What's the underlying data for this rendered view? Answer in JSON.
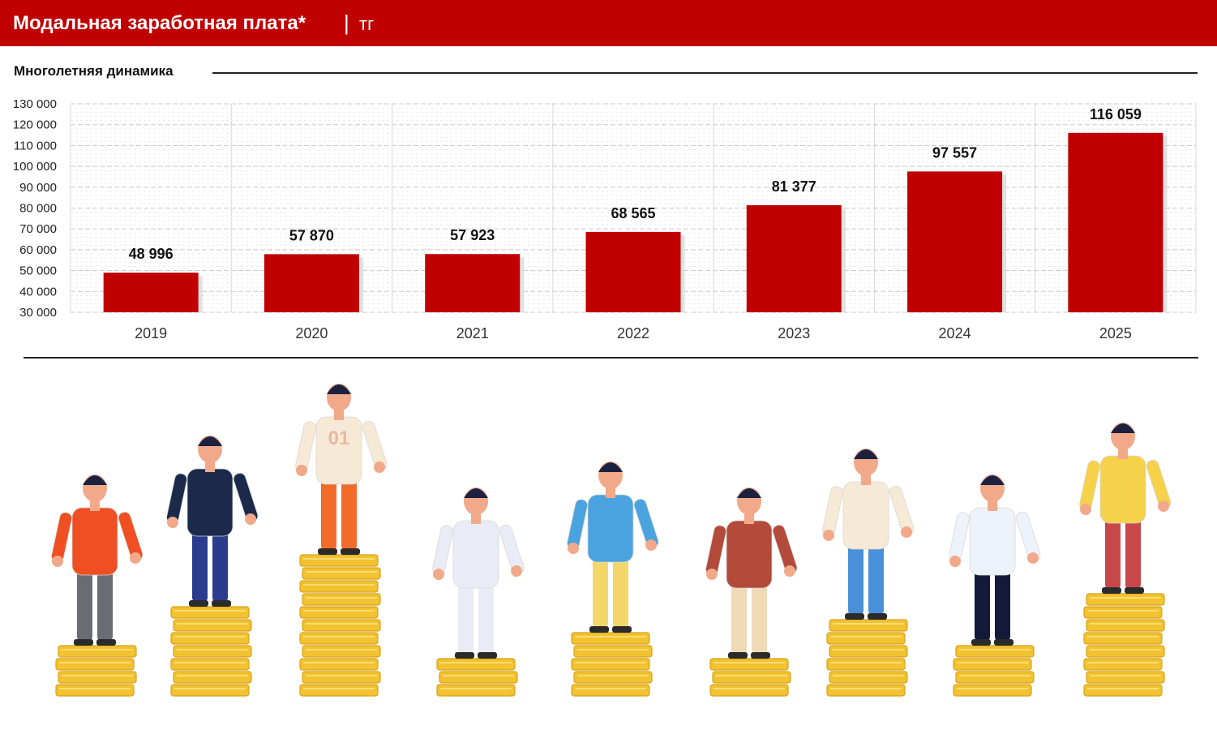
{
  "header": {
    "title": "Модальная заработная плата*",
    "separator": "|",
    "unit": "тг"
  },
  "section": {
    "title": "Многолетняя динамика"
  },
  "colors": {
    "brand": "#c00000",
    "bar": "#c00000",
    "coin": "#f2c230"
  },
  "chart_data": {
    "type": "bar",
    "title": "Многолетняя динамика",
    "categories": [
      "2019",
      "2020",
      "2021",
      "2022",
      "2023",
      "2024",
      "2025"
    ],
    "values": [
      48996,
      57870,
      57923,
      68565,
      81377,
      97557,
      116059
    ],
    "data_labels": [
      "48 996",
      "57 870",
      "57 923",
      "68 565",
      "81 377",
      "97 557",
      "116 059"
    ],
    "y_ticks": [
      "30 000",
      "40 000",
      "50 000",
      "60 000",
      "70 000",
      "80 000",
      "90 000",
      "100 000",
      "110 000",
      "120 000",
      "130 000"
    ],
    "ylim": [
      30000,
      130000
    ],
    "grid": true,
    "legend": "none"
  },
  "illustration": {
    "figures": [
      {
        "name": "courier",
        "coin_stacks": 4,
        "shirt": "#f04e23",
        "pants": "#6b6b73"
      },
      {
        "name": "office-worker",
        "coin_stacks": 7,
        "shirt": "#1b2a4a",
        "pants": "#2b3c8f"
      },
      {
        "name": "football-player",
        "coin_stacks": 11,
        "shirt": "#f6e9d6",
        "pants": "#f26b2a",
        "jersey_number": "01"
      },
      {
        "name": "cleaner",
        "coin_stacks": 3,
        "shirt": "#e9ecf6",
        "pants": "#e9ecf6"
      },
      {
        "name": "builder",
        "coin_stacks": 5,
        "shirt": "#4aa3df",
        "pants": "#f4d76a"
      },
      {
        "name": "gardener",
        "coin_stacks": 3,
        "shirt": "#b34a3a",
        "pants": "#f0d9b5"
      },
      {
        "name": "mechanic",
        "coin_stacks": 6,
        "shirt": "#f6e9d6",
        "pants": "#4a90d9"
      },
      {
        "name": "waiter",
        "coin_stacks": 4,
        "shirt": "#eef3fb",
        "pants": "#131a3a"
      },
      {
        "name": "photographer",
        "coin_stacks": 8,
        "shirt": "#f5d24a",
        "pants": "#c8474b"
      }
    ]
  }
}
